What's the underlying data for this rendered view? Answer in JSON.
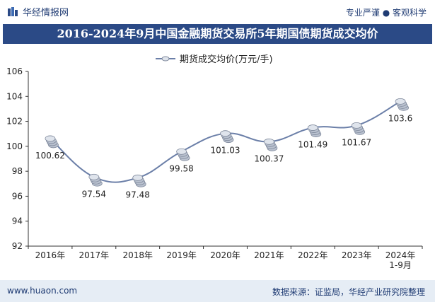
{
  "header": {
    "brand": "华经情报网",
    "tagline": "专业严谨 ● 客观科学",
    "title": "2016-2024年9月中国金融期货交易所5年期国债期货成交均价"
  },
  "footer": {
    "url": "www.huaon.com",
    "source": "数据来源：证监局，华经产业研究院整理"
  },
  "colors": {
    "title_bg": "#2b4a86",
    "line": "#6b7fa8",
    "footer_bg": "#e6edf5"
  },
  "chart_data": {
    "type": "line",
    "title": "2016-2024年9月中国金融期货交易所5年期国债期货成交均价",
    "categories": [
      "2016年",
      "2017年",
      "2018年",
      "2019年",
      "2020年",
      "2021年",
      "2022年",
      "2023年",
      "2024年\n1-9月"
    ],
    "series": [
      {
        "name": "期货成交均价(万元/手)",
        "values": [
          100.62,
          97.54,
          97.48,
          99.58,
          101.03,
          100.37,
          101.49,
          101.67,
          103.6
        ]
      }
    ],
    "data_labels": [
      "100.62",
      "97.54",
      "97.48",
      "99.58",
      "101.03",
      "100.37",
      "101.49",
      "101.67",
      "103.6"
    ],
    "ylim": [
      92,
      106
    ],
    "yticks": [
      92,
      94,
      96,
      98,
      100,
      102,
      104,
      106
    ],
    "xlabel": "",
    "ylabel": "",
    "legend_position": "top-center",
    "grid": false
  }
}
